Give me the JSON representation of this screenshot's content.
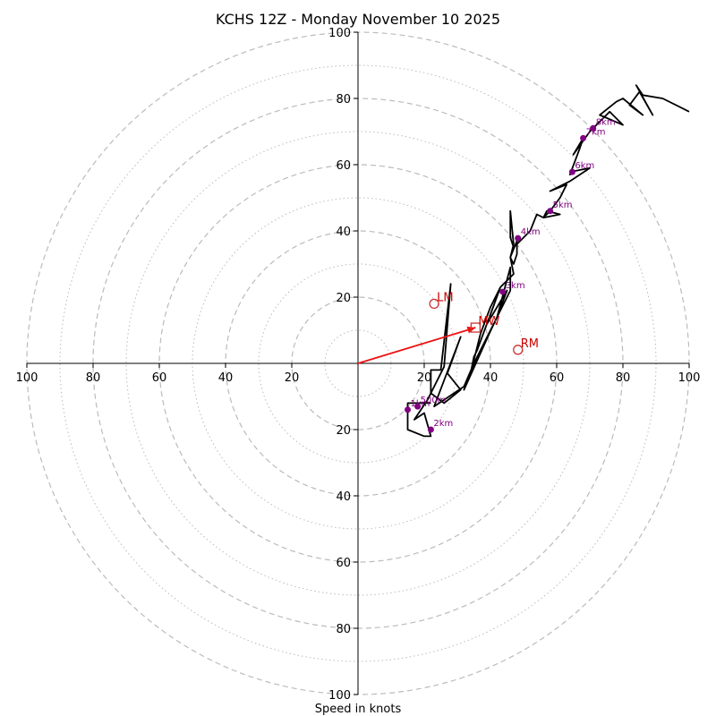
{
  "chart_data": {
    "type": "hodograph",
    "title": "KCHS 12Z - Monday November 10 2025",
    "xlabel": "Speed in knots",
    "axis_range": [
      -100,
      100
    ],
    "ring_major": [
      20,
      40,
      60,
      80,
      100
    ],
    "ring_minor": [
      10,
      30,
      50,
      70,
      90
    ],
    "tick_values": [
      20,
      40,
      60,
      80,
      100
    ],
    "x_tick_labels": [
      "100",
      "80",
      "60",
      "40",
      "20",
      "20",
      "40",
      "60",
      "80",
      "100"
    ],
    "y_tick_labels": [
      "100",
      "80",
      "60",
      "40",
      "20",
      "20",
      "40",
      "60",
      "80",
      "100"
    ],
    "colors": {
      "trace": "#000000",
      "height_points": "#800080",
      "motion": "#cc3333",
      "mean_wind_vector": "#ee1111",
      "grid": "#bbbbbb"
    },
    "wind_trace": [
      [
        22,
        -12
      ],
      [
        15,
        -12
      ],
      [
        15,
        -20
      ],
      [
        20,
        -22
      ],
      [
        22,
        -22
      ],
      [
        20,
        -15
      ],
      [
        17,
        -17
      ],
      [
        21,
        -11
      ],
      [
        22,
        -9
      ],
      [
        26,
        -1
      ],
      [
        28,
        24
      ],
      [
        25,
        -2
      ],
      [
        22,
        -2
      ],
      [
        22,
        -9
      ],
      [
        26,
        -12
      ],
      [
        31,
        -8
      ],
      [
        27,
        -3
      ],
      [
        31,
        8
      ],
      [
        23,
        -13
      ],
      [
        32,
        -7
      ],
      [
        35,
        0
      ],
      [
        41,
        12
      ],
      [
        32,
        -8
      ],
      [
        34,
        -3
      ],
      [
        42,
        14
      ],
      [
        46,
        29
      ],
      [
        46,
        22
      ],
      [
        42,
        14
      ],
      [
        45,
        22
      ],
      [
        42,
        17
      ],
      [
        39,
        12
      ],
      [
        43,
        23
      ],
      [
        40,
        17
      ],
      [
        37,
        9
      ],
      [
        34,
        -3
      ],
      [
        35,
        2
      ],
      [
        36,
        4
      ],
      [
        43,
        23
      ],
      [
        47,
        27
      ],
      [
        46,
        32
      ],
      [
        48,
        37
      ],
      [
        48,
        33
      ],
      [
        47,
        30
      ],
      [
        46,
        32
      ],
      [
        47,
        36
      ],
      [
        46,
        46
      ],
      [
        46,
        38
      ],
      [
        47,
        35
      ],
      [
        52,
        40
      ],
      [
        54,
        45
      ],
      [
        56,
        44
      ],
      [
        61,
        45
      ],
      [
        57,
        46
      ],
      [
        56,
        44
      ],
      [
        58,
        46
      ],
      [
        61,
        50
      ],
      [
        63,
        54
      ],
      [
        58,
        52
      ],
      [
        64,
        55
      ],
      [
        70,
        59
      ],
      [
        65,
        58
      ],
      [
        64,
        57
      ],
      [
        67,
        65
      ],
      [
        68,
        68
      ],
      [
        65,
        63
      ],
      [
        70,
        70
      ],
      [
        73,
        73
      ],
      [
        76,
        76
      ],
      [
        80,
        72
      ],
      [
        73,
        75
      ],
      [
        78,
        79
      ],
      [
        80,
        80
      ],
      [
        86,
        75
      ],
      [
        82,
        78
      ],
      [
        85,
        82
      ],
      [
        89,
        75
      ],
      [
        84,
        84
      ],
      [
        86,
        81
      ],
      [
        92,
        80
      ],
      [
        100,
        76
      ]
    ],
    "height_points": [
      {
        "label": "1km",
        "u": 15,
        "v": -14
      },
      {
        "label": "500m",
        "u": 18,
        "v": -13
      },
      {
        "label": "2km",
        "u": 22,
        "v": -20
      },
      {
        "label": "3km",
        "u": 43.7,
        "v": 21.6
      },
      {
        "label": "4km",
        "u": 48.3,
        "v": 37.8
      },
      {
        "label": "5km",
        "u": 58,
        "v": 46
      },
      {
        "label": "6km",
        "u": 64.7,
        "v": 57.8
      },
      {
        "label": "7km",
        "u": 68,
        "v": 68
      },
      {
        "label": "8km",
        "u": 71,
        "v": 71
      }
    ],
    "storm_motion": [
      {
        "label": "LM",
        "u": 23,
        "v": 18,
        "marker": "circle"
      },
      {
        "label": "MW",
        "u": 35.5,
        "v": 10.8,
        "marker": "square"
      },
      {
        "label": "RM",
        "u": 48.3,
        "v": 4.1,
        "marker": "circle"
      }
    ],
    "mean_wind_vector": {
      "u": 35.5,
      "v": 10.8
    }
  }
}
